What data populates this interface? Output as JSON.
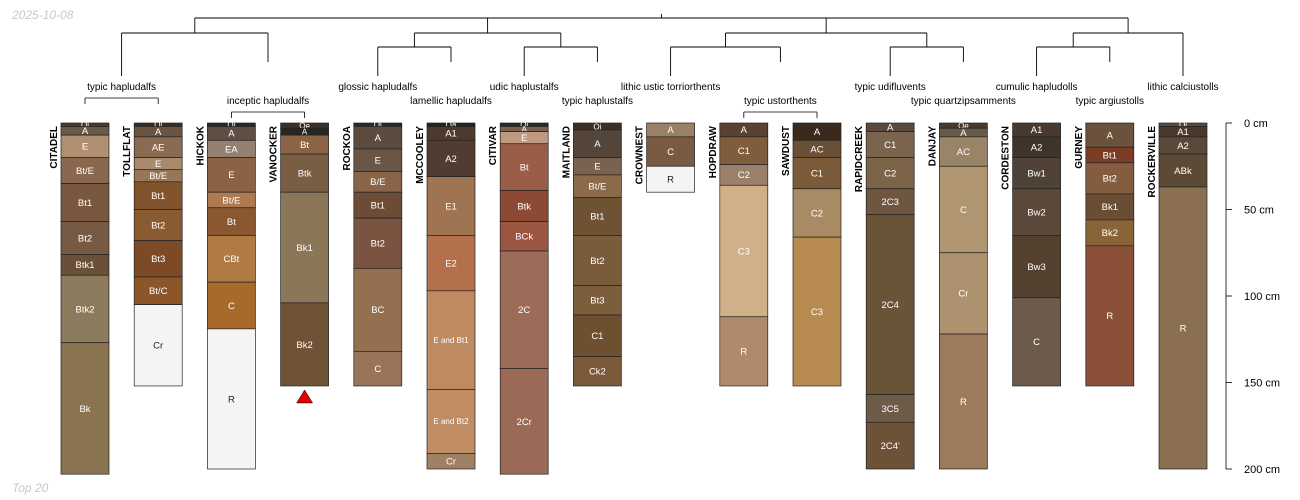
{
  "date": "2025-10-08",
  "footer": "Top 20",
  "depth_unit": "cm",
  "depth_max": 200,
  "depth_ticks": [
    {
      "depth": 0,
      "label": "0 cm"
    },
    {
      "depth": 50,
      "label": "50 cm"
    },
    {
      "depth": 100,
      "label": "100 cm"
    },
    {
      "depth": 150,
      "label": "150 cm"
    },
    {
      "depth": 200,
      "label": "200 cm"
    }
  ],
  "taxa": [
    {
      "id": "typic-hapludalfs",
      "label": "typic hapludalfs",
      "members": [
        0,
        1
      ],
      "row": 1
    },
    {
      "id": "inceptic-hapludalfs",
      "label": "inceptic hapludalfs",
      "members": [
        2,
        3
      ],
      "row": 2
    },
    {
      "id": "glossic-hapludalfs",
      "label": "glossic hapludalfs",
      "members": [
        4
      ],
      "row": 1
    },
    {
      "id": "lamellic-hapludalfs",
      "label": "lamellic hapludalfs",
      "members": [
        5
      ],
      "row": 2
    },
    {
      "id": "udic-haplustalfs",
      "label": "udic haplustalfs",
      "members": [
        6
      ],
      "row": 1
    },
    {
      "id": "typic-haplustalfs",
      "label": "typic haplustalfs",
      "members": [
        7
      ],
      "row": 2
    },
    {
      "id": "lithic-ustic-torriorthents",
      "label": "lithic ustic torriorthents",
      "members": [
        8
      ],
      "row": 1
    },
    {
      "id": "typic-ustorthents",
      "label": "typic ustorthents",
      "members": [
        9,
        10
      ],
      "row": 2
    },
    {
      "id": "typic-udifluvents",
      "label": "typic udifluvents",
      "members": [
        11
      ],
      "row": 1
    },
    {
      "id": "typic-quartzipsamments",
      "label": "typic quartzipsamments",
      "members": [
        12
      ],
      "row": 2
    },
    {
      "id": "cumulic-hapludolls",
      "label": "cumulic hapludolls",
      "members": [
        13
      ],
      "row": 1
    },
    {
      "id": "typic-argiustolls",
      "label": "typic argiustolls",
      "members": [
        14
      ],
      "row": 2
    },
    {
      "id": "lithic-calciustolls",
      "label": "lithic calciustolls",
      "members": [
        15
      ],
      "row": 1
    }
  ],
  "tree": [
    [
      "typic-hapludalfs",
      "inceptic-hapludalfs"
    ],
    [
      [
        "glossic-hapludalfs",
        "lamellic-hapludalfs"
      ],
      [
        "udic-haplustalfs",
        "typic-haplustalfs"
      ]
    ],
    [
      [
        "lithic-ustic-torriorthents",
        "typic-ustorthents"
      ],
      [
        "typic-udifluvents",
        "typic-quartzipsamments"
      ]
    ],
    [
      [
        "cumulic-hapludolls",
        "typic-argiustolls"
      ],
      "lithic-calciustolls"
    ]
  ],
  "profiles": [
    {
      "name": "CITADEL",
      "horizons": [
        {
          "name": "Oi",
          "top": 0,
          "bottom": 2,
          "color": "#4a3a2c"
        },
        {
          "name": "A",
          "top": 2,
          "bottom": 7,
          "color": "#6a5a4a"
        },
        {
          "name": "E",
          "top": 7,
          "bottom": 20,
          "color": "#b08e70"
        },
        {
          "name": "Bt/E",
          "top": 20,
          "bottom": 35,
          "color": "#8a6850"
        },
        {
          "name": "Bt1",
          "top": 35,
          "bottom": 57,
          "color": "#7a5840"
        },
        {
          "name": "Bt2",
          "top": 57,
          "bottom": 76,
          "color": "#765a44"
        },
        {
          "name": "Btk1",
          "top": 76,
          "bottom": 88,
          "color": "#6a5038"
        },
        {
          "name": "Btk2",
          "top": 88,
          "bottom": 127,
          "color": "#8c7a5c"
        },
        {
          "name": "Bk",
          "top": 127,
          "bottom": 203,
          "color": "#8a7450"
        }
      ]
    },
    {
      "name": "TOLLFLAT",
      "horizons": [
        {
          "name": "Oi",
          "top": 0,
          "bottom": 2,
          "color": "#3a2e24"
        },
        {
          "name": "A",
          "top": 2,
          "bottom": 8,
          "color": "#6a5442"
        },
        {
          "name": "AE",
          "top": 8,
          "bottom": 20,
          "color": "#8a6a50"
        },
        {
          "name": "E",
          "top": 20,
          "bottom": 27,
          "color": "#a88a6c"
        },
        {
          "name": "Bt/E",
          "top": 27,
          "bottom": 34,
          "color": "#9a7658"
        },
        {
          "name": "Bt1",
          "top": 34,
          "bottom": 50,
          "color": "#82542c"
        },
        {
          "name": "Bt2",
          "top": 50,
          "bottom": 68,
          "color": "#8a5a30"
        },
        {
          "name": "Bt3",
          "top": 68,
          "bottom": 89,
          "color": "#7c4a24"
        },
        {
          "name": "Bt/C",
          "top": 89,
          "bottom": 105,
          "color": "#8c5628"
        },
        {
          "name": "Cr",
          "top": 105,
          "bottom": 152,
          "color": "#f4f4f4"
        }
      ]
    },
    {
      "name": "HICKOK",
      "horizons": [
        {
          "name": "Oi",
          "top": 0,
          "bottom": 2,
          "color": "#2e2620"
        },
        {
          "name": "A",
          "top": 2,
          "bottom": 10,
          "color": "#5e4e44"
        },
        {
          "name": "EA",
          "top": 10,
          "bottom": 20,
          "color": "#948070"
        },
        {
          "name": "E",
          "top": 20,
          "bottom": 40,
          "color": "#8c6244"
        },
        {
          "name": "Bt/E",
          "top": 40,
          "bottom": 49,
          "color": "#b07a50"
        },
        {
          "name": "Bt",
          "top": 49,
          "bottom": 65,
          "color": "#8a5830"
        },
        {
          "name": "CBt",
          "top": 65,
          "bottom": 92,
          "color": "#b07a44"
        },
        {
          "name": "C",
          "top": 92,
          "bottom": 119,
          "color": "#a86a28"
        },
        {
          "name": "R",
          "top": 119,
          "bottom": 200,
          "color": "#f4f4f4"
        }
      ]
    },
    {
      "name": "VANOCKER",
      "horizons": [
        {
          "name": "Oe",
          "top": 0,
          "bottom": 3,
          "color": "#3c3128"
        },
        {
          "name": "A",
          "top": 3,
          "bottom": 7,
          "color": "#2a2520"
        },
        {
          "name": "Bt",
          "top": 7,
          "bottom": 18,
          "color": "#8a6444"
        },
        {
          "name": "Btk",
          "top": 18,
          "bottom": 40,
          "color": "#7a5e44"
        },
        {
          "name": "Bk1",
          "top": 40,
          "bottom": 104,
          "color": "#8c7658"
        },
        {
          "name": "Bk2",
          "top": 104,
          "bottom": 152,
          "color": "#705236"
        }
      ],
      "truncated": true
    },
    {
      "name": "ROCKOA",
      "horizons": [
        {
          "name": "Oi",
          "top": 0,
          "bottom": 2,
          "color": "#2e2820"
        },
        {
          "name": "A",
          "top": 2,
          "bottom": 15,
          "color": "#5c4c40"
        },
        {
          "name": "E",
          "top": 15,
          "bottom": 28,
          "color": "#6a5646"
        },
        {
          "name": "B/E",
          "top": 28,
          "bottom": 40,
          "color": "#8a6448"
        },
        {
          "name": "Bt1",
          "top": 40,
          "bottom": 55,
          "color": "#6c4c34"
        },
        {
          "name": "Bt2",
          "top": 55,
          "bottom": 84,
          "color": "#7a5440"
        },
        {
          "name": "BC",
          "top": 84,
          "bottom": 132,
          "color": "#947050"
        },
        {
          "name": "C",
          "top": 132,
          "bottom": 152,
          "color": "#9a7458"
        }
      ]
    },
    {
      "name": "MCCOOLEY",
      "horizons": [
        {
          "name": "Oa",
          "top": 0,
          "bottom": 2,
          "color": "#2a2218"
        },
        {
          "name": "A1",
          "top": 2,
          "bottom": 10,
          "color": "#4e3a2c"
        },
        {
          "name": "A2",
          "top": 10,
          "bottom": 31,
          "color": "#503c30"
        },
        {
          "name": "E1",
          "top": 31,
          "bottom": 65,
          "color": "#a07450"
        },
        {
          "name": "E2",
          "top": 65,
          "bottom": 97,
          "color": "#b4704c"
        },
        {
          "name": "E and Bt1",
          "top": 97,
          "bottom": 154,
          "color": "#c08a60"
        },
        {
          "name": "E and Bt2",
          "top": 154,
          "bottom": 191,
          "color": "#c08c64"
        },
        {
          "name": "Cr",
          "top": 191,
          "bottom": 200,
          "color": "#a08064"
        }
      ]
    },
    {
      "name": "CITIVAR",
      "horizons": [
        {
          "name": "Oi",
          "top": 0,
          "bottom": 2,
          "color": "#2e2820"
        },
        {
          "name": "A",
          "top": 2,
          "bottom": 5,
          "color": "#7a6050"
        },
        {
          "name": "E",
          "top": 5,
          "bottom": 12,
          "color": "#c09a80"
        },
        {
          "name": "Bt",
          "top": 12,
          "bottom": 39,
          "color": "#9a5e48"
        },
        {
          "name": "Btk",
          "top": 39,
          "bottom": 57,
          "color": "#8c4a34"
        },
        {
          "name": "BCk",
          "top": 57,
          "bottom": 74,
          "color": "#9a5640"
        },
        {
          "name": "2C",
          "top": 74,
          "bottom": 142,
          "color": "#9c6c58"
        },
        {
          "name": "2Cr",
          "top": 142,
          "bottom": 203,
          "color": "#9a6a56"
        }
      ]
    },
    {
      "name": "MAITLAND",
      "horizons": [
        {
          "name": "Oi",
          "top": 0,
          "bottom": 4,
          "color": "#3a3028"
        },
        {
          "name": "A",
          "top": 4,
          "bottom": 20,
          "color": "#54463a"
        },
        {
          "name": "E",
          "top": 20,
          "bottom": 30,
          "color": "#7a6250"
        },
        {
          "name": "Bt/E",
          "top": 30,
          "bottom": 43,
          "color": "#8a6a48"
        },
        {
          "name": "Bt1",
          "top": 43,
          "bottom": 65,
          "color": "#6e5234"
        },
        {
          "name": "Bt2",
          "top": 65,
          "bottom": 94,
          "color": "#7a5c3a"
        },
        {
          "name": "Bt3",
          "top": 94,
          "bottom": 111,
          "color": "#7c5e3c"
        },
        {
          "name": "C1",
          "top": 111,
          "bottom": 135,
          "color": "#6e5030"
        },
        {
          "name": "Ck2",
          "top": 135,
          "bottom": 152,
          "color": "#7a5a3a"
        }
      ]
    },
    {
      "name": "CROWNEST",
      "horizons": [
        {
          "name": "A",
          "top": 0,
          "bottom": 8,
          "color": "#9a8064"
        },
        {
          "name": "C",
          "top": 8,
          "bottom": 25,
          "color": "#7a5a40"
        },
        {
          "name": "R",
          "top": 25,
          "bottom": 40,
          "color": "#f4f4f4"
        }
      ]
    },
    {
      "name": "HOPDRAW",
      "horizons": [
        {
          "name": "A",
          "top": 0,
          "bottom": 8,
          "color": "#5a4232"
        },
        {
          "name": "C1",
          "top": 8,
          "bottom": 24,
          "color": "#7e5c3c"
        },
        {
          "name": "C2",
          "top": 24,
          "bottom": 36,
          "color": "#9a806a"
        },
        {
          "name": "C3",
          "top": 36,
          "bottom": 112,
          "color": "#d0b088"
        },
        {
          "name": "R",
          "top": 112,
          "bottom": 152,
          "color": "#b08a6c"
        }
      ]
    },
    {
      "name": "SAWDUST",
      "horizons": [
        {
          "name": "A",
          "top": 0,
          "bottom": 10,
          "color": "#3a2a1e"
        },
        {
          "name": "AC",
          "top": 10,
          "bottom": 20,
          "color": "#6a5036"
        },
        {
          "name": "C1",
          "top": 20,
          "bottom": 38,
          "color": "#7a5a38"
        },
        {
          "name": "C2",
          "top": 38,
          "bottom": 66,
          "color": "#a88a64"
        },
        {
          "name": "C3",
          "top": 66,
          "bottom": 152,
          "color": "#b88c50"
        }
      ]
    },
    {
      "name": "RAPIDCREEK",
      "horizons": [
        {
          "name": "A",
          "top": 0,
          "bottom": 5,
          "color": "#5a4a3e"
        },
        {
          "name": "C1",
          "top": 5,
          "bottom": 20,
          "color": "#7a6450"
        },
        {
          "name": "C2",
          "top": 20,
          "bottom": 38,
          "color": "#7c6448"
        },
        {
          "name": "2C3",
          "top": 38,
          "bottom": 53,
          "color": "#6e5640"
        },
        {
          "name": "2C4",
          "top": 53,
          "bottom": 157,
          "color": "#6a5438"
        },
        {
          "name": "3C5",
          "top": 157,
          "bottom": 173,
          "color": "#6e5a48"
        },
        {
          "name": "2C4'",
          "top": 173,
          "bottom": 200,
          "color": "#6c5236"
        }
      ]
    },
    {
      "name": "DANJAY",
      "horizons": [
        {
          "name": "Oe",
          "top": 0,
          "bottom": 3,
          "color": "#4a3a2c"
        },
        {
          "name": "A",
          "top": 3,
          "bottom": 8,
          "color": "#6a5a48"
        },
        {
          "name": "AC",
          "top": 8,
          "bottom": 25,
          "color": "#9a8468"
        },
        {
          "name": "C",
          "top": 25,
          "bottom": 75,
          "color": "#b09670"
        },
        {
          "name": "Cr",
          "top": 75,
          "bottom": 122,
          "color": "#ae9270"
        },
        {
          "name": "R",
          "top": 122,
          "bottom": 200,
          "color": "#9c7a5c"
        }
      ]
    },
    {
      "name": "CORDESTON",
      "horizons": [
        {
          "name": "A1",
          "top": 0,
          "bottom": 8,
          "color": "#4a3a2e"
        },
        {
          "name": "A2",
          "top": 8,
          "bottom": 20,
          "color": "#3e342a"
        },
        {
          "name": "Bw1",
          "top": 20,
          "bottom": 38,
          "color": "#504236"
        },
        {
          "name": "Bw2",
          "top": 38,
          "bottom": 65,
          "color": "#5a4838"
        },
        {
          "name": "Bw3",
          "top": 65,
          "bottom": 101,
          "color": "#54402e"
        },
        {
          "name": "C",
          "top": 101,
          "bottom": 152,
          "color": "#6c5a4a"
        }
      ]
    },
    {
      "name": "GURNEY",
      "horizons": [
        {
          "name": "A",
          "top": 0,
          "bottom": 14,
          "color": "#6a523c"
        },
        {
          "name": "Bt1",
          "top": 14,
          "bottom": 23,
          "color": "#7c3c24"
        },
        {
          "name": "Bt2",
          "top": 23,
          "bottom": 41,
          "color": "#845c40"
        },
        {
          "name": "Bk1",
          "top": 41,
          "bottom": 56,
          "color": "#6a4e34"
        },
        {
          "name": "Bk2",
          "top": 56,
          "bottom": 71,
          "color": "#8a6438"
        },
        {
          "name": "R",
          "top": 71,
          "bottom": 152,
          "color": "#8a5038"
        }
      ]
    },
    {
      "name": "ROCKERVILLE",
      "horizons": [
        {
          "name": "Oi",
          "top": 0,
          "bottom": 2,
          "color": "#5a4a3c"
        },
        {
          "name": "A1",
          "top": 2,
          "bottom": 8,
          "color": "#4a3a2c"
        },
        {
          "name": "A2",
          "top": 8,
          "bottom": 18,
          "color": "#5a4838"
        },
        {
          "name": "ABk",
          "top": 18,
          "bottom": 37,
          "color": "#5c4a36"
        },
        {
          "name": "R",
          "top": 37,
          "bottom": 200,
          "color": "#8a7050"
        }
      ]
    }
  ]
}
